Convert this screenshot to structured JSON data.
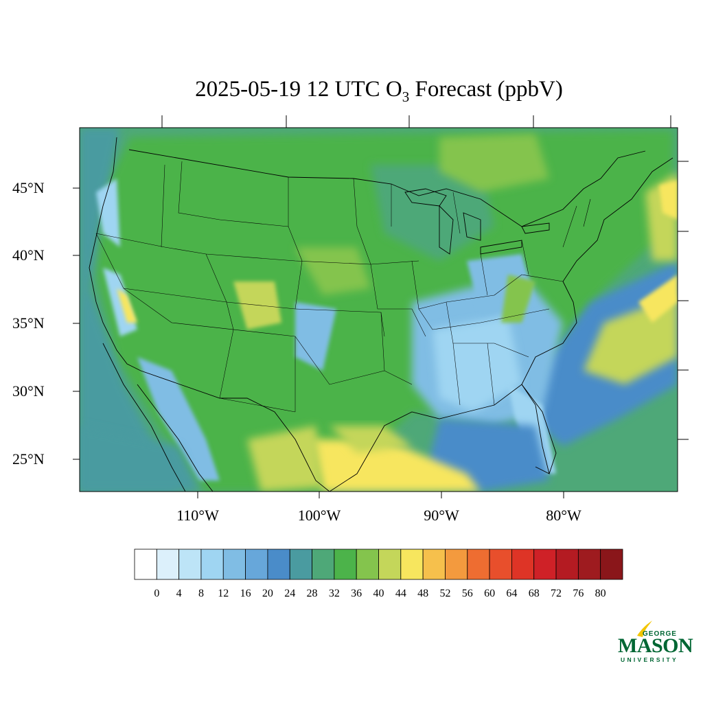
{
  "title": {
    "prefix": "2025-05-19 12 UTC O",
    "subscript": "3",
    "suffix": " Forecast (ppbV)"
  },
  "map": {
    "region": "Contiguous United States",
    "projection": "Lambert conformal",
    "latitude_labels": [
      "45°N",
      "40°N",
      "35°N",
      "30°N",
      "25°N"
    ],
    "longitude_labels": [
      "110°W",
      "100°W",
      "90°W",
      "80°W"
    ],
    "boundaries": [
      "coastlines",
      "US state borders",
      "Canada border",
      "Mexico border"
    ]
  },
  "colorbar": {
    "tick_labels": [
      "0",
      "4",
      "8",
      "12",
      "16",
      "20",
      "24",
      "28",
      "32",
      "36",
      "40",
      "44",
      "48",
      "52",
      "56",
      "60",
      "64",
      "68",
      "72",
      "76",
      "80"
    ],
    "colors": [
      "#ffffff",
      "#dcf0fb",
      "#bde4f7",
      "#9fd5f2",
      "#80bde4",
      "#67a7da",
      "#4a8cc9",
      "#4a9ba0",
      "#4ea878",
      "#4cb34a",
      "#84c44d",
      "#c4d65a",
      "#f7e65e",
      "#f6c04c",
      "#f39a3e",
      "#ee6d31",
      "#e84f2c",
      "#de3426",
      "#cf2127",
      "#b41b22",
      "#9e1b1f",
      "#8a161a"
    ]
  },
  "logo": {
    "line1": "GEORGE",
    "line2": "MASON",
    "line3": "UNIVERSITY",
    "color": "#006633",
    "accent": "#f2c500"
  }
}
